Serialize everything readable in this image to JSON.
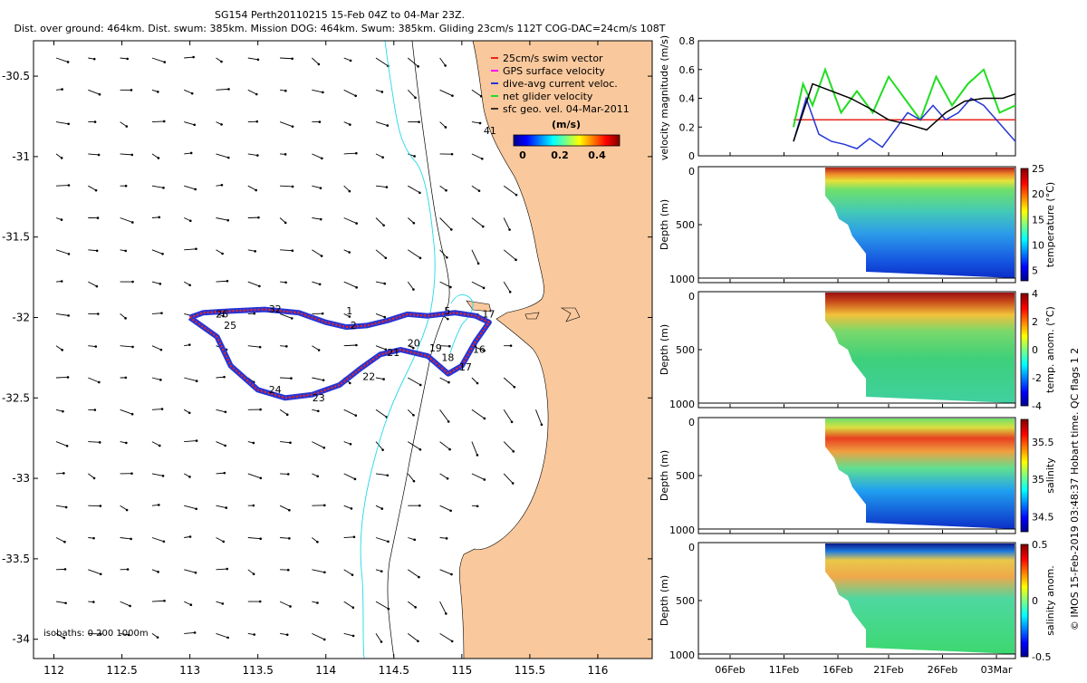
{
  "title": {
    "line1": "SG154 Perth20110215 15-Feb 04Z to 04-Mar 23Z.",
    "line2": "Dist. over ground: 464km. Dist. swum: 385km. Mission DOG: 464km. Swum: 385km. Gliding 23cm/s 112T COG-DAC=24cm/s 108T"
  },
  "side_label": "© IMOS 15-Feb-2019 03:48:37 Hobart time. QC flags 1  2",
  "colors": {
    "land": "#f9c89c",
    "isobath_200": "#000000",
    "isobath_1000": "#22d8ea",
    "swim_vector": "#e8261d",
    "dive_current": "#2535d8",
    "net_velocity": "#22dd22",
    "sfc_geo": "#000000",
    "gps": "#ff00ff"
  },
  "chart_data": [
    {
      "type": "scatter",
      "name": "map",
      "x_ticks": [
        "112",
        "112.5",
        "113",
        "113.5",
        "114",
        "114.5",
        "115",
        "115.5",
        "116"
      ],
      "y_ticks": [
        "-30.5",
        "-31",
        "-31.5",
        "-32",
        "-32.5",
        "-33",
        "-33.5",
        "-34"
      ],
      "xlim": [
        111.85,
        116.4
      ],
      "ylim": [
        -34.12,
        -30.28
      ],
      "legend": {
        "placement": "top-right",
        "entries": [
          "25cm/s swim vector",
          "GPS surface velocity",
          "dive-avg current veloc.",
          "net glider velocity",
          "sfc geo. vel. 04-Mar-2011"
        ],
        "colorbar_title": "(m/s)",
        "colorbar_ticks": [
          "0",
          "0.2",
          "0.4"
        ]
      },
      "isobaths_label": "isobaths: 0   200  1000m",
      "track_labels": [
        {
          "text": "1",
          "lon": 114.15,
          "lat": -31.98
        },
        {
          "text": "2",
          "lon": 114.18,
          "lat": -32.07
        },
        {
          "text": "5",
          "lon": 114.87,
          "lat": -31.98
        },
        {
          "text": "17",
          "lon": 115.15,
          "lat": -32.0
        },
        {
          "text": "16",
          "lon": 115.08,
          "lat": -32.22
        },
        {
          "text": "17",
          "lon": 114.98,
          "lat": -32.33
        },
        {
          "text": "18",
          "lon": 114.85,
          "lat": -32.27
        },
        {
          "text": "19",
          "lon": 114.76,
          "lat": -32.21
        },
        {
          "text": "20",
          "lon": 114.6,
          "lat": -32.18
        },
        {
          "text": "21",
          "lon": 114.45,
          "lat": -32.24
        },
        {
          "text": "22",
          "lon": 114.27,
          "lat": -32.39
        },
        {
          "text": "23",
          "lon": 113.9,
          "lat": -32.52
        },
        {
          "text": "24",
          "lon": 113.58,
          "lat": -32.47
        },
        {
          "text": "25",
          "lon": 113.25,
          "lat": -32.07
        },
        {
          "text": "26",
          "lon": 113.19,
          "lat": -32.0
        },
        {
          "text": "32",
          "lon": 113.58,
          "lat": -31.97
        },
        {
          "text": "41",
          "lon": 115.16,
          "lat": -30.86
        }
      ],
      "track": [
        [
          113.0,
          -32.0
        ],
        [
          113.1,
          -31.97
        ],
        [
          113.3,
          -31.96
        ],
        [
          113.55,
          -31.95
        ],
        [
          113.8,
          -31.97
        ],
        [
          114.0,
          -32.03
        ],
        [
          114.15,
          -32.06
        ],
        [
          114.3,
          -32.05
        ],
        [
          114.45,
          -32.02
        ],
        [
          114.6,
          -31.98
        ],
        [
          114.75,
          -31.99
        ],
        [
          114.85,
          -31.98
        ],
        [
          114.95,
          -31.97
        ],
        [
          115.1,
          -31.99
        ],
        [
          115.2,
          -32.03
        ],
        [
          115.1,
          -32.15
        ],
        [
          115.0,
          -32.3
        ],
        [
          114.9,
          -32.35
        ],
        [
          114.75,
          -32.24
        ],
        [
          114.55,
          -32.2
        ],
        [
          114.4,
          -32.23
        ],
        [
          114.25,
          -32.32
        ],
        [
          114.1,
          -32.42
        ],
        [
          113.9,
          -32.48
        ],
        [
          113.7,
          -32.5
        ],
        [
          113.5,
          -32.45
        ],
        [
          113.3,
          -32.3
        ],
        [
          113.2,
          -32.12
        ],
        [
          113.0,
          -32.0
        ]
      ]
    },
    {
      "type": "line",
      "name": "velocity_magnitude",
      "ylabel": "velocity magnitude (m/s)",
      "ylim": [
        0,
        0.8
      ],
      "y_ticks": [
        "0",
        "0.2",
        "0.4",
        "0.6",
        "0.8"
      ],
      "x_ticks": [
        "06Feb",
        "11Feb",
        "16Feb",
        "21Feb",
        "26Feb",
        "03Mar"
      ],
      "series": [
        {
          "name": "swim",
          "color": "#e8261d",
          "x": [
            0.3,
            1.0
          ],
          "values": [
            0.25,
            0.25
          ]
        },
        {
          "name": "net",
          "color": "#22dd22",
          "x": [
            0.3,
            0.33,
            0.36,
            0.4,
            0.45,
            0.5,
            0.55,
            0.6,
            0.65,
            0.7,
            0.75,
            0.8,
            0.85,
            0.9,
            0.95,
            1.0
          ],
          "values": [
            0.2,
            0.5,
            0.35,
            0.6,
            0.3,
            0.45,
            0.3,
            0.55,
            0.4,
            0.25,
            0.55,
            0.35,
            0.5,
            0.6,
            0.3,
            0.35
          ]
        },
        {
          "name": "dive-avg",
          "color": "#2535d8",
          "x": [
            0.3,
            0.34,
            0.38,
            0.42,
            0.46,
            0.5,
            0.54,
            0.58,
            0.62,
            0.66,
            0.7,
            0.74,
            0.78,
            0.82,
            0.86,
            0.9,
            0.94,
            0.98,
            1.0
          ],
          "values": [
            0.1,
            0.4,
            0.15,
            0.1,
            0.08,
            0.05,
            0.12,
            0.06,
            0.18,
            0.3,
            0.25,
            0.35,
            0.25,
            0.3,
            0.4,
            0.35,
            0.25,
            0.15,
            0.1
          ]
        },
        {
          "name": "sfc geo",
          "color": "#000000",
          "x": [
            0.3,
            0.36,
            0.42,
            0.48,
            0.54,
            0.6,
            0.66,
            0.72,
            0.78,
            0.84,
            0.9,
            0.96,
            1.0
          ],
          "values": [
            0.1,
            0.5,
            0.45,
            0.4,
            0.33,
            0.25,
            0.22,
            0.18,
            0.3,
            0.38,
            0.4,
            0.4,
            0.43
          ]
        }
      ]
    },
    {
      "type": "heatmap",
      "name": "temperature",
      "ylabel": "Depth (m)",
      "ylim": [
        1000,
        0
      ],
      "y_ticks": [
        "0",
        "500",
        "1000"
      ],
      "colorbar_label": "temperature (°C)",
      "colorbar_ticks": [
        "25",
        "20",
        "15",
        "10",
        "5"
      ],
      "clim": [
        3,
        25
      ]
    },
    {
      "type": "heatmap",
      "name": "temperature_anomaly",
      "ylabel": "Depth (m)",
      "ylim": [
        1000,
        0
      ],
      "y_ticks": [
        "0",
        "500",
        "1000"
      ],
      "colorbar_label": "temp. anom. (°C)",
      "colorbar_ticks": [
        "4",
        "2",
        "0",
        "-2",
        "-4"
      ],
      "clim": [
        -4,
        4
      ]
    },
    {
      "type": "heatmap",
      "name": "salinity",
      "ylabel": "Depth (m)",
      "ylim": [
        1000,
        0
      ],
      "y_ticks": [
        "0",
        "500",
        "1000"
      ],
      "colorbar_label": "salinity",
      "colorbar_ticks": [
        "35.5",
        "35",
        "34.5"
      ],
      "clim": [
        34.3,
        35.8
      ]
    },
    {
      "type": "heatmap",
      "name": "salinity_anomaly",
      "ylabel": "Depth (m)",
      "ylim": [
        1000,
        0
      ],
      "y_ticks": [
        "0",
        "500",
        "1000"
      ],
      "colorbar_label": "salinity anom.",
      "colorbar_ticks": [
        "0.5",
        "0",
        "-0.5"
      ],
      "x_ticks": [
        "06Feb",
        "11Feb",
        "16Feb",
        "21Feb",
        "26Feb",
        "03Mar"
      ],
      "clim": [
        -0.5,
        0.5
      ]
    }
  ]
}
